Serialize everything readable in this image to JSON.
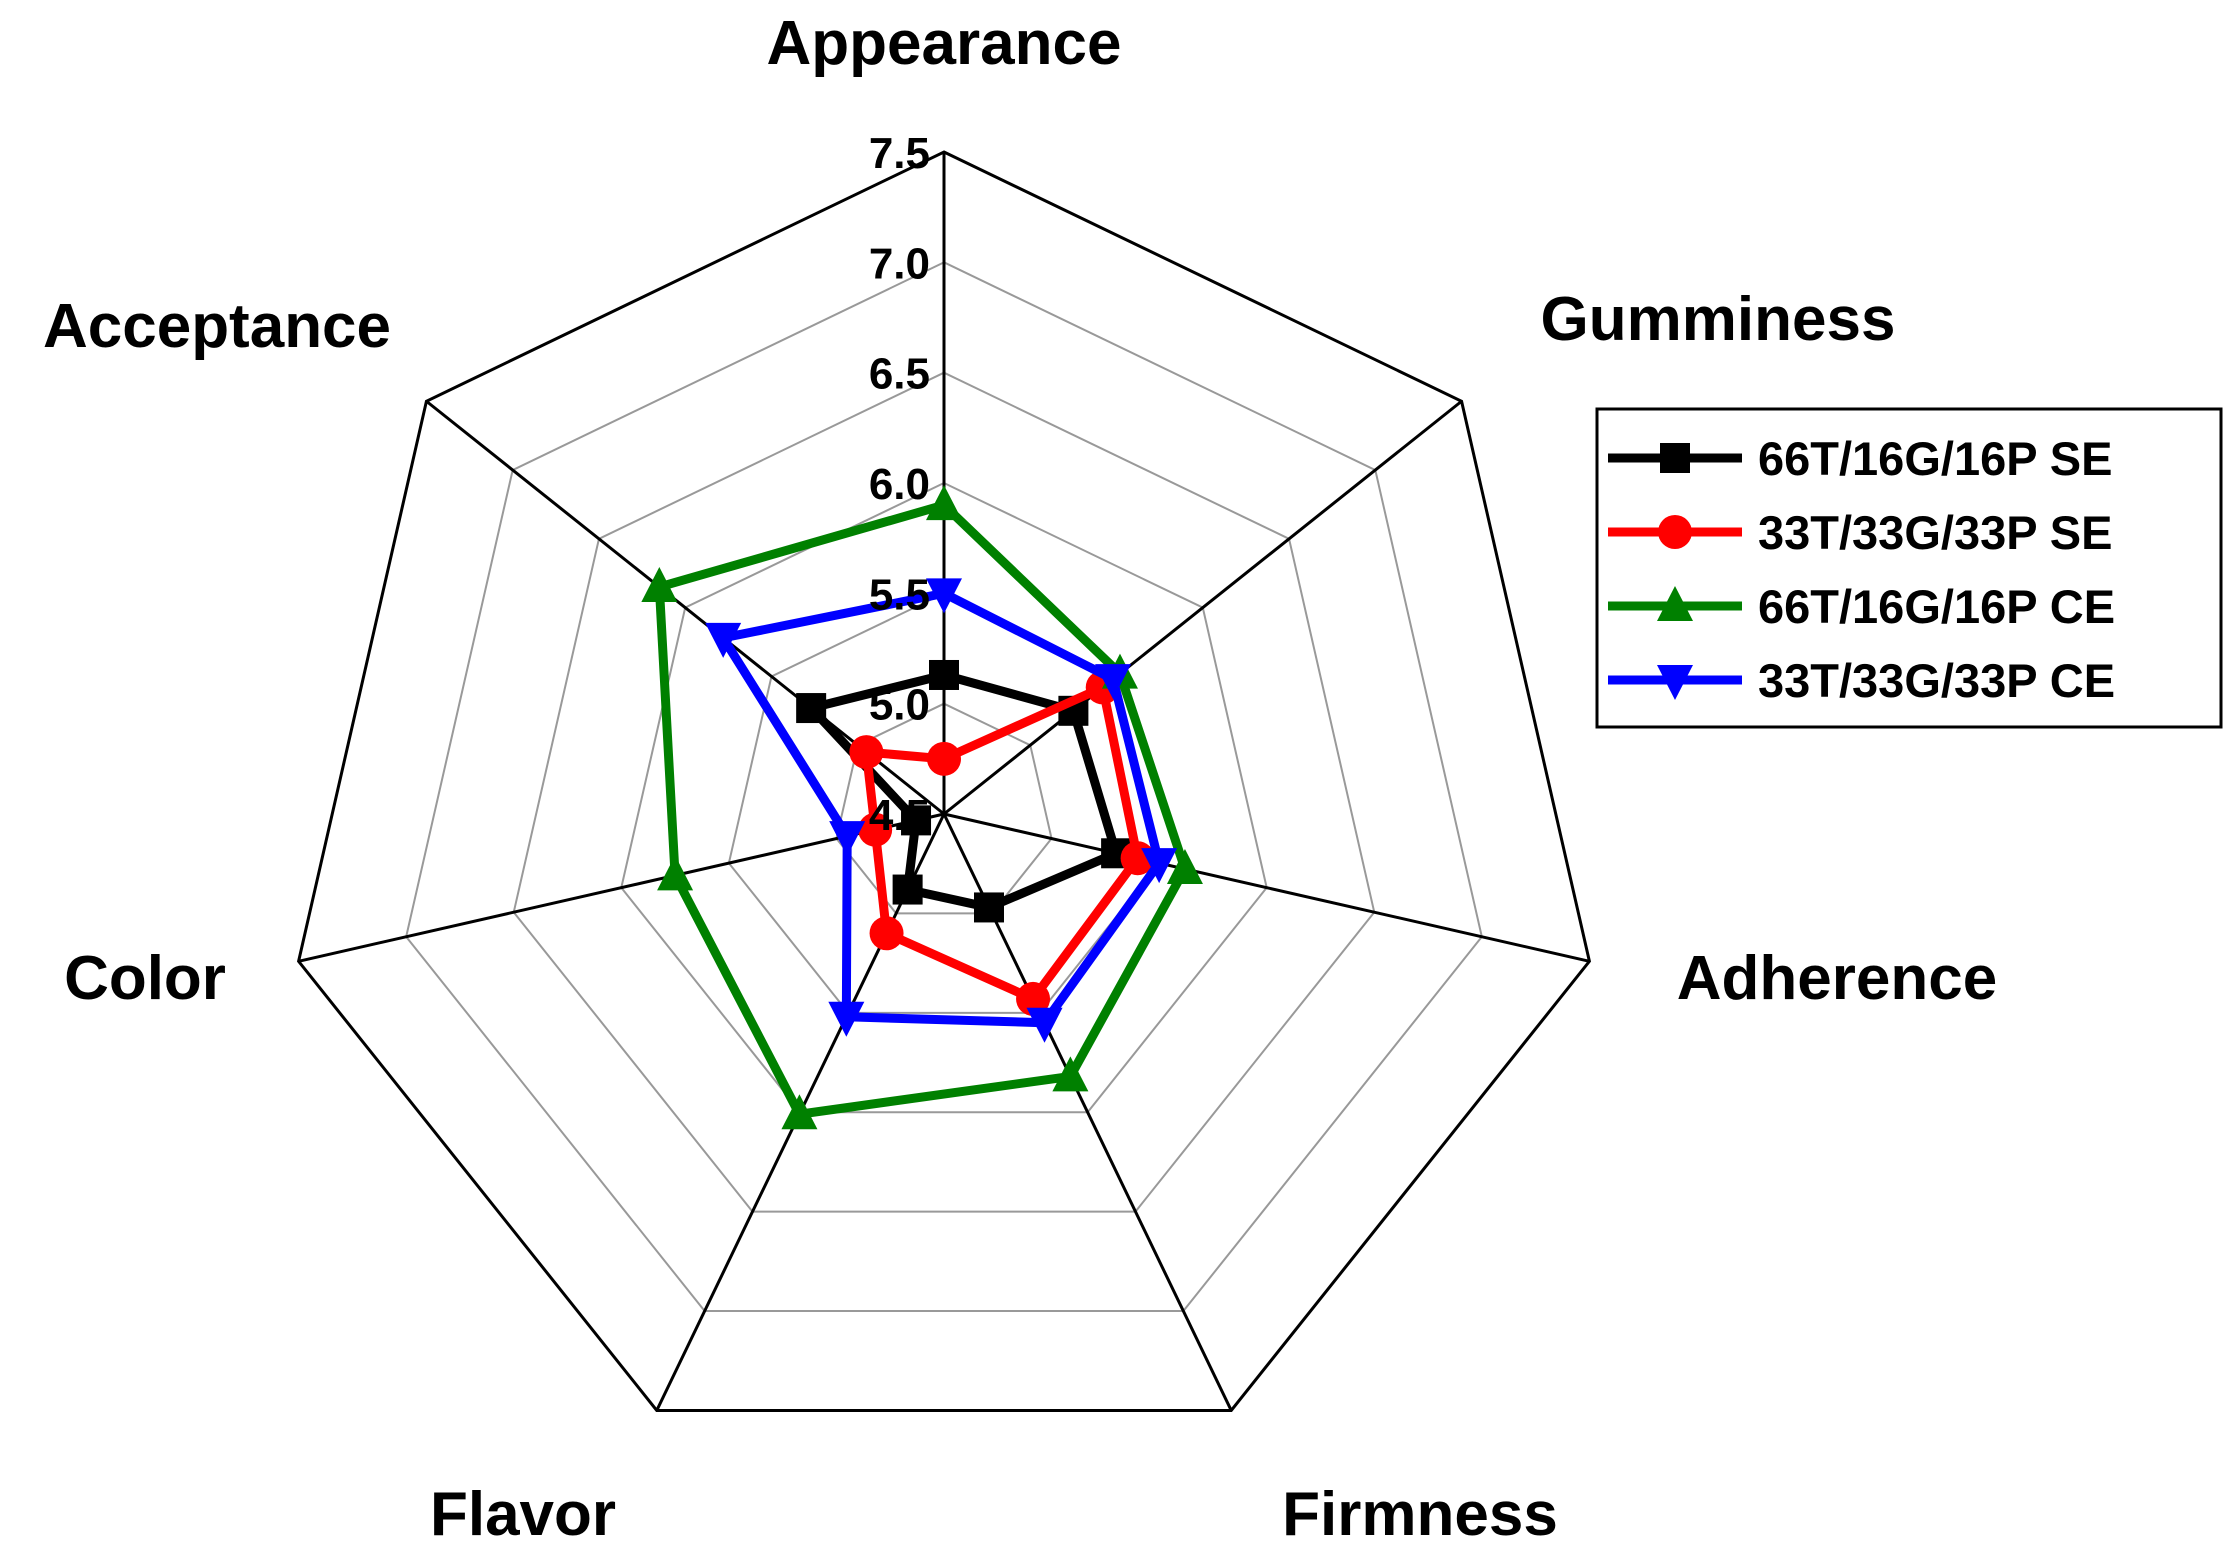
{
  "chart_data": {
    "type": "radar",
    "axes": [
      "Appearance",
      "Gumminess",
      "Adherence",
      "Firmness",
      "Flavor",
      "Color",
      "Acceptance"
    ],
    "rlim": [
      4.5,
      7.5
    ],
    "ticks": [
      "4.5",
      "5.0",
      "5.5",
      "6.0",
      "6.5",
      "7.0",
      "7.5"
    ],
    "tick_values": [
      4.5,
      5.0,
      5.5,
      6.0,
      6.5,
      7.0,
      7.5
    ],
    "grid": true,
    "legend_position": "right",
    "series": [
      {
        "name": "66T/16G/16P SE",
        "color": "#000000",
        "marker": "square",
        "values": [
          5.13,
          5.25,
          5.3,
          4.97,
          4.88,
          4.63,
          5.27
        ]
      },
      {
        "name": "33T/33G/33P SE",
        "color": "#ff0000",
        "marker": "circle",
        "values": [
          4.75,
          5.42,
          5.4,
          5.43,
          5.1,
          4.82,
          4.95
        ]
      },
      {
        "name": "66T/16G/16P CE",
        "color": "#008000",
        "marker": "triangle-up",
        "values": [
          5.9,
          5.52,
          5.62,
          5.82,
          6.01,
          5.75,
          6.15
        ]
      },
      {
        "name": "33T/33G/33P CE",
        "color": "#0000ff",
        "marker": "triangle-down",
        "values": [
          5.5,
          5.48,
          5.5,
          5.55,
          5.52,
          4.95,
          5.78
        ]
      }
    ]
  }
}
